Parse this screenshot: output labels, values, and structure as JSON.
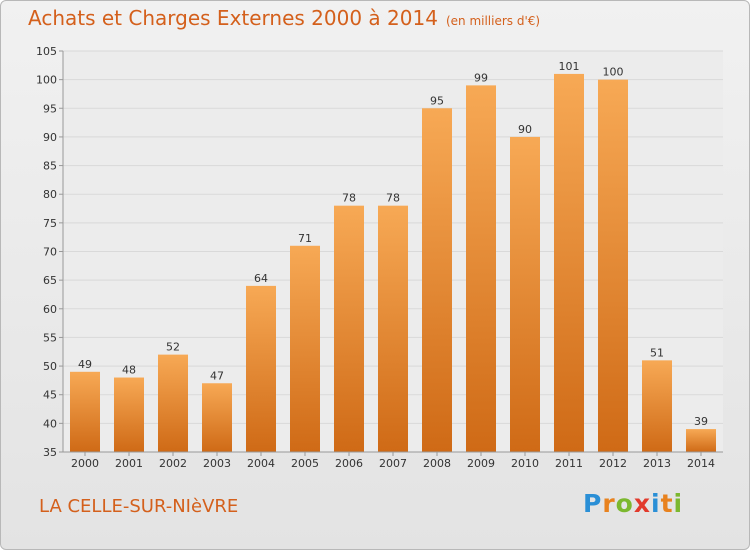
{
  "header": {
    "title": "Achats et Charges Externes 2000 à 2014",
    "unit": "(en milliers d'€)"
  },
  "footer": {
    "commune": "LA CELLE-SUR-NIèVRE",
    "logo_letters": [
      "P",
      "r",
      "o",
      "x",
      "i",
      "t",
      "i"
    ],
    "logo_colors": [
      "#2a8fd6",
      "#e8821e",
      "#7cb82f",
      "#e23a2c",
      "#2a8fd6",
      "#e8821e",
      "#7cb82f"
    ]
  },
  "colors": {
    "bar": "#f08a2c",
    "bar_light": "#f7a955",
    "bar_dark": "#cf6a16",
    "grid": "#d9d9d9",
    "axis_text": "#333333",
    "title": "#d4601c"
  },
  "chart_data": {
    "type": "bar",
    "title": "Achats et Charges Externes 2000 à 2014",
    "xlabel": "",
    "ylabel": "",
    "categories": [
      "2000",
      "2001",
      "2002",
      "2003",
      "2004",
      "2005",
      "2006",
      "2007",
      "2008",
      "2009",
      "2010",
      "2011",
      "2012",
      "2013",
      "2014"
    ],
    "values": [
      49,
      48,
      52,
      47,
      64,
      71,
      78,
      78,
      95,
      99,
      90,
      101,
      100,
      51,
      39
    ],
    "ylim": [
      35,
      105
    ],
    "yticks": [
      35,
      40,
      45,
      50,
      55,
      60,
      65,
      70,
      75,
      80,
      85,
      90,
      95,
      100,
      105
    ],
    "grid": true,
    "legend": "none"
  }
}
